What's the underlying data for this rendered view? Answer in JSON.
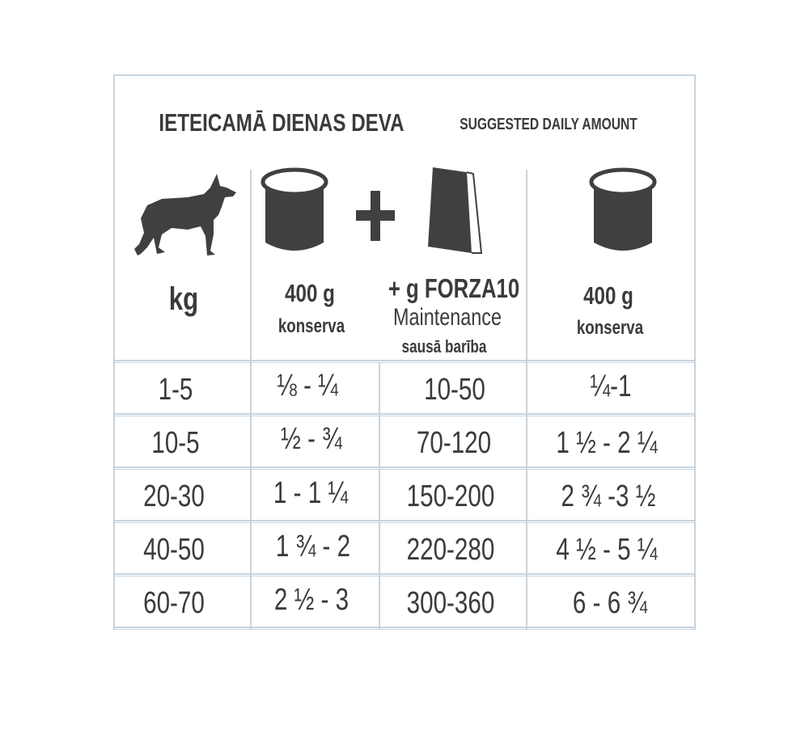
{
  "title": "IETEICAMĀ DIENAS DEVA",
  "subtitle": "SUGGESTED DAILY AMOUNT",
  "headers": {
    "weight": {
      "label": "kg",
      "icon": "dog-icon"
    },
    "can_mix": {
      "amount": "400 g",
      "label": "konserva",
      "icon": "can-icon"
    },
    "plus_icon": "plus-icon",
    "dry": {
      "amount": "+ g FORZA10",
      "product": "Maintenance",
      "label": "sausā barība",
      "icon": "food-bag-icon"
    },
    "can_only": {
      "amount": "400 g",
      "label": "konserva",
      "icon": "can-icon"
    }
  },
  "rows": [
    {
      "kg": "1-5",
      "can": "⅛ - ¼",
      "dry": "10-50",
      "can_only": "¼-1"
    },
    {
      "kg": "10-5",
      "can": "½ - ¾",
      "dry": "70-120",
      "can_only": "1 ½ - 2 ¼"
    },
    {
      "kg": "20-30",
      "can": "1 - 1 ¼",
      "dry": "150-200",
      "can_only": "2 ¾ -3 ½"
    },
    {
      "kg": "40-50",
      "can": "1 ¾ - 2",
      "dry": "220-280",
      "can_only": "4 ½ - 5 ¼"
    },
    {
      "kg": "60-70",
      "can": "2 ½ - 3",
      "dry": "300-360",
      "can_only": "6 - 6 ¾"
    }
  ],
  "colors": {
    "text": "#3b3b3b",
    "lines": "#c7d4df",
    "icons": "#404040"
  }
}
